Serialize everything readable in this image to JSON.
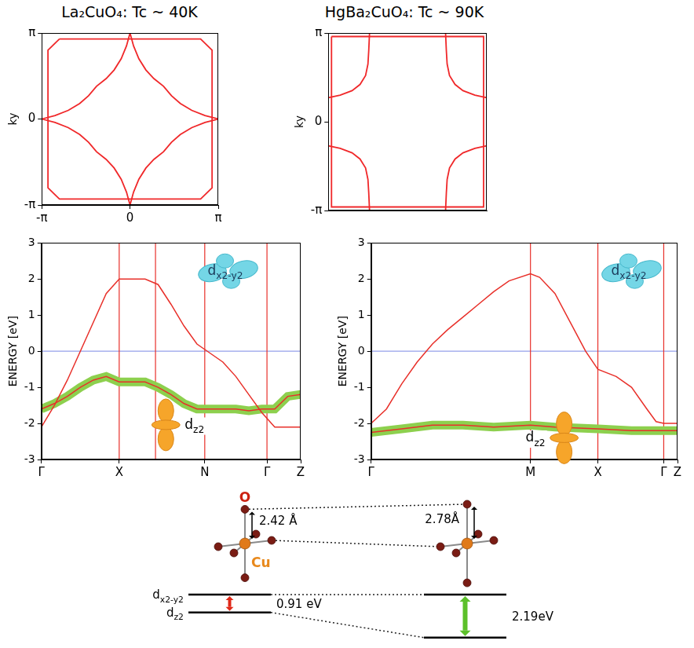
{
  "chart_data": [
    {
      "type": "line",
      "title": "La₂CuO₄: Tc ~ 40K",
      "y_label": "ky",
      "xlim": [
        -1,
        1
      ],
      "ylim": [
        -1,
        1
      ],
      "xticks": [
        {
          "value": -1,
          "label": "-π"
        },
        0,
        {
          "value": 1,
          "label": "π"
        }
      ],
      "yticks": [
        {
          "value": -1,
          "label": "-π"
        },
        0,
        {
          "value": 1,
          "label": "π"
        }
      ],
      "grid": false,
      "series": [
        {
          "color": "#f0282a",
          "line_style": "solid",
          "x": [
            0,
            0.04,
            0.1,
            0.18,
            0.27,
            0.38,
            0.47,
            0.57,
            0.7,
            0.85,
            1,
            0.85,
            0.7,
            0.57,
            0.47,
            0.38,
            0.27,
            0.18,
            0.1,
            0.04,
            0,
            -0.04,
            -0.1,
            -0.18,
            -0.27,
            -0.38,
            -0.47,
            -0.57,
            -0.7,
            -0.85,
            -1,
            -0.85,
            -0.7,
            -0.57,
            -0.47,
            -0.38,
            -0.27,
            -0.18,
            -0.1,
            -0.04,
            0
          ],
          "values": [
            1,
            0.85,
            0.7,
            0.57,
            0.47,
            0.38,
            0.27,
            0.18,
            0.1,
            0.04,
            0,
            -0.04,
            -0.1,
            -0.18,
            -0.27,
            -0.38,
            -0.47,
            -0.57,
            -0.7,
            -0.85,
            -1,
            -0.85,
            -0.7,
            -0.57,
            -0.47,
            -0.38,
            -0.27,
            -0.18,
            -0.1,
            -0.04,
            0,
            0.04,
            0.1,
            0.18,
            0.27,
            0.38,
            0.47,
            0.57,
            0.7,
            0.85,
            1
          ]
        },
        {
          "color": "#f0282a",
          "line_style": "solid",
          "x": [
            -0.8,
            0.8,
            0.93,
            0.93,
            0.8,
            -0.8,
            -0.93,
            -0.93,
            -0.8
          ],
          "values": [
            0.93,
            0.93,
            0.8,
            -0.8,
            -0.93,
            -0.93,
            -0.8,
            0.8,
            0.93
          ]
        }
      ]
    },
    {
      "type": "line",
      "title": "HgBa₂CuO₄: Tc ~ 90K",
      "y_label": "ky",
      "xlim": [
        -1,
        1
      ],
      "ylim": [
        -1,
        1
      ],
      "yticks": [
        {
          "value": -1,
          "label": "-π"
        },
        0,
        {
          "value": 1,
          "label": "π"
        }
      ],
      "grid": false,
      "tick_labels": "y",
      "series": [
        {
          "color": "#f0282a",
          "line_style": "solid",
          "x": [
            -1,
            -0.85,
            -0.7,
            -0.6,
            -0.53,
            -0.5,
            -0.49,
            -0.48,
            null,
            0.48,
            0.49,
            0.5,
            0.53,
            0.6,
            0.7,
            0.85,
            1,
            null,
            1,
            0.85,
            0.7,
            0.6,
            0.53,
            0.5,
            0.49,
            0.48,
            null,
            -0.48,
            -0.49,
            -0.5,
            -0.53,
            -0.6,
            -0.7,
            -0.85,
            -1
          ],
          "values": [
            0.27,
            0.3,
            0.35,
            0.42,
            0.52,
            0.65,
            0.8,
            1,
            null,
            1,
            0.8,
            0.65,
            0.52,
            0.42,
            0.35,
            0.3,
            0.27,
            null,
            -0.27,
            -0.3,
            -0.35,
            -0.42,
            -0.52,
            -0.65,
            -0.8,
            -1,
            null,
            -1,
            -0.8,
            -0.65,
            -0.52,
            -0.42,
            -0.35,
            -0.3,
            -0.27
          ]
        },
        {
          "color": "#f0282a",
          "line_style": "solid",
          "x": [
            -0.96,
            0.96,
            0.96,
            -0.96,
            -0.96
          ],
          "values": [
            0.96,
            0.96,
            -0.96,
            -0.96,
            0.96
          ]
        }
      ]
    },
    {
      "type": "line",
      "y_label": "ENERGY [eV]",
      "xlim": [
        0,
        1
      ],
      "ylim": [
        -3,
        3
      ],
      "xticks": [
        {
          "value": 0,
          "label": "Γ"
        },
        {
          "value": 0.3,
          "label": "X"
        },
        {
          "value": 0.63,
          "label": "N"
        },
        {
          "value": 0.87,
          "label": "Γ"
        },
        {
          "value": 1,
          "label": "Z"
        }
      ],
      "yticks": [
        -3,
        -2,
        -1,
        0,
        1,
        2,
        3
      ],
      "grid": false,
      "fermi_level": 0,
      "vlines": [
        0.3,
        0.44,
        0.63,
        0.87
      ],
      "series": [
        {
          "name": "dx2-y2",
          "color": "#e8302a",
          "line_style": "solid",
          "x": [
            0,
            0.05,
            0.1,
            0.15,
            0.2,
            0.25,
            0.3,
            0.35,
            0.4,
            0.45,
            0.5,
            0.55,
            0.6,
            0.65,
            0.7,
            0.75,
            0.8,
            0.85,
            0.9,
            0.95,
            1
          ],
          "values": [
            -2.1,
            -1.5,
            -0.8,
            0.0,
            0.8,
            1.6,
            2.0,
            2.0,
            2.0,
            1.85,
            1.3,
            0.7,
            0.2,
            -0.05,
            -0.3,
            -0.7,
            -1.2,
            -1.7,
            -2.1,
            -2.1,
            -2.1
          ]
        },
        {
          "name": "dz2",
          "color": "#8dd04e",
          "line_style": "fat",
          "x": [
            0,
            0.05,
            0.1,
            0.15,
            0.2,
            0.25,
            0.3,
            0.35,
            0.4,
            0.45,
            0.5,
            0.55,
            0.6,
            0.65,
            0.7,
            0.75,
            0.8,
            0.85,
            0.9,
            0.95,
            1
          ],
          "values": [
            -1.6,
            -1.45,
            -1.25,
            -1.0,
            -0.8,
            -0.7,
            -0.85,
            -0.85,
            -0.85,
            -1.0,
            -1.2,
            -1.45,
            -1.6,
            -1.6,
            -1.6,
            -1.6,
            -1.65,
            -1.6,
            -1.6,
            -1.25,
            -1.2
          ]
        }
      ]
    },
    {
      "type": "line",
      "y_label": "ENERGY [eV]",
      "xlim": [
        0,
        1
      ],
      "ylim": [
        -3,
        3
      ],
      "xticks": [
        {
          "value": 0,
          "label": "Γ"
        },
        {
          "value": 0.52,
          "label": "M"
        },
        {
          "value": 0.74,
          "label": "X"
        },
        {
          "value": 0.955,
          "label": "Γ"
        },
        {
          "value": 1,
          "label": "Z"
        }
      ],
      "yticks": [
        -3,
        -2,
        -1,
        0,
        1,
        2,
        3
      ],
      "grid": false,
      "fermi_level": 0,
      "vlines": [
        0.52,
        0.74,
        0.955
      ],
      "series": [
        {
          "name": "dx2-y2",
          "color": "#e8302a",
          "line_style": "solid",
          "x": [
            0,
            0.05,
            0.1,
            0.15,
            0.2,
            0.25,
            0.3,
            0.35,
            0.4,
            0.45,
            0.52,
            0.55,
            0.6,
            0.65,
            0.7,
            0.74,
            0.8,
            0.85,
            0.9,
            0.93,
            0.955,
            1
          ],
          "values": [
            -2.0,
            -1.6,
            -0.9,
            -0.3,
            0.2,
            0.6,
            0.95,
            1.3,
            1.65,
            1.95,
            2.15,
            2.05,
            1.6,
            0.8,
            0.0,
            -0.5,
            -0.7,
            -1.0,
            -1.6,
            -1.95,
            -2.0,
            -2.0
          ]
        },
        {
          "name": "dz2",
          "color": "#8dd04e",
          "line_style": "fat",
          "x": [
            0,
            0.1,
            0.2,
            0.3,
            0.4,
            0.52,
            0.6,
            0.74,
            0.85,
            0.955,
            1
          ],
          "values": [
            -2.25,
            -2.15,
            -2.05,
            -2.05,
            -2.1,
            -2.05,
            -2.1,
            -2.15,
            -2.2,
            -2.2,
            -2.2
          ]
        }
      ]
    }
  ],
  "diagram": {
    "oxygen_label": "O",
    "copper_label": "Cu",
    "levels": {
      "upper": "dx2-y2",
      "lower": "dz2"
    },
    "structures": [
      {
        "apical_distance": {
          "value": 2.42,
          "label": "2.42 Å"
        },
        "splitting": {
          "value": 0.91,
          "label": "0.91 eV"
        }
      },
      {
        "apical_distance": {
          "value": 2.78,
          "label": "2.78Å"
        },
        "splitting": {
          "value": 2.19,
          "label": "2.19eV"
        }
      }
    ]
  }
}
